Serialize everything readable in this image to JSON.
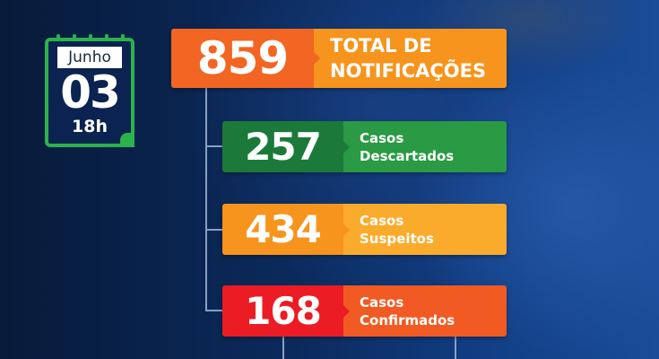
{
  "calendar": {
    "month": "Junho",
    "day": "03",
    "hour": "18h"
  },
  "total": {
    "value": "859",
    "label_line1": "TOTAL DE",
    "label_line2": "NOTIFICAÇÕES",
    "colors": [
      "#f26522",
      "#f7941d"
    ]
  },
  "categories": [
    {
      "value": "257",
      "line1": "Casos",
      "line2": "Descartados",
      "colors": [
        "#1b7a3a",
        "#2a9a44"
      ]
    },
    {
      "value": "434",
      "line1": "Casos",
      "line2": "Suspeitos",
      "colors": [
        "#f7941d",
        "#fbab2c"
      ]
    },
    {
      "value": "168",
      "line1": "Casos",
      "line2": "Confirmados",
      "colors": [
        "#ec1c24",
        "#f15a22"
      ]
    }
  ]
}
